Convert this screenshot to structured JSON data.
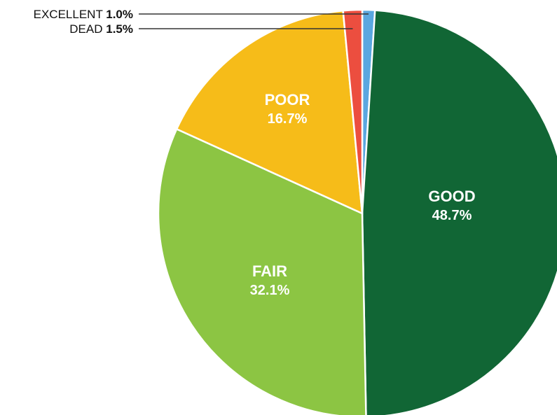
{
  "chart_data": {
    "type": "pie",
    "title": "",
    "start": "top",
    "direction": "clockwise",
    "slices": [
      {
        "label": "EXCELLENT",
        "value": 1.0,
        "display": "1.0%",
        "color": "#5aa7e0",
        "label_style": "callout"
      },
      {
        "label": "GOOD",
        "value": 48.7,
        "display": "48.7%",
        "color": "#116635",
        "label_style": "inside"
      },
      {
        "label": "FAIR",
        "value": 32.1,
        "display": "32.1%",
        "color": "#8cc543",
        "label_style": "inside"
      },
      {
        "label": "POOR",
        "value": 16.7,
        "display": "16.7%",
        "color": "#f6bc19",
        "label_style": "inside"
      },
      {
        "label": "DEAD",
        "value": 1.5,
        "display": "1.5%",
        "color": "#ec4e3f",
        "label_style": "callout"
      }
    ]
  }
}
